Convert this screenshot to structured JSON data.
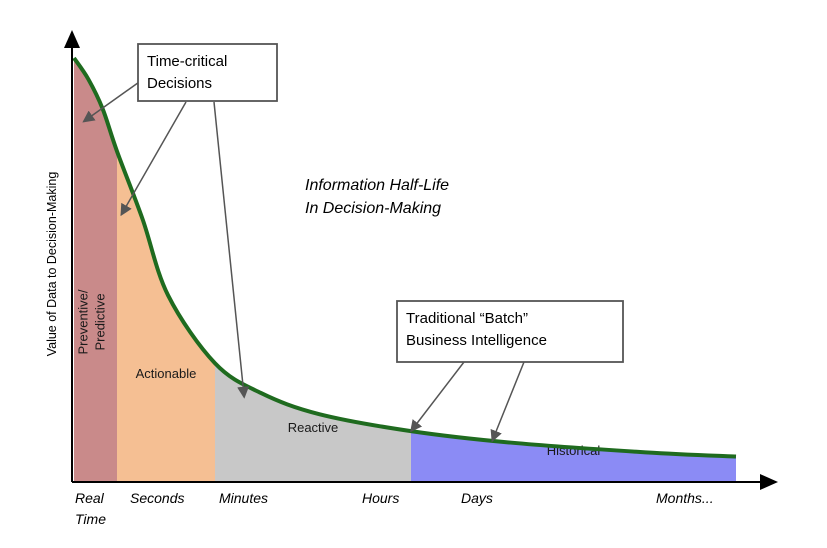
{
  "chart_data": {
    "type": "area",
    "headline": [
      "Information Half-Life",
      "In Decision-Making"
    ],
    "ylabel": "Value of Data to Decision-Making",
    "x_ticks": [
      {
        "lines": [
          "Real",
          "Time"
        ]
      },
      {
        "lines": [
          "Seconds"
        ]
      },
      {
        "lines": [
          "Minutes"
        ]
      },
      {
        "lines": [
          "Hours"
        ]
      },
      {
        "lines": [
          "Days"
        ]
      },
      {
        "lines": [
          "Months..."
        ]
      }
    ],
    "regions": [
      {
        "name": "preventive",
        "label": [
          "Preventive/",
          "Predictive"
        ],
        "vertical": true,
        "from": 0,
        "to": 0.9,
        "color": "#c98a8a"
      },
      {
        "name": "actionable",
        "label": [
          "Actionable"
        ],
        "from": 0.9,
        "to": 2.05,
        "color": "#f5bf93"
      },
      {
        "name": "reactive",
        "label": [
          "Reactive"
        ],
        "from": 2.05,
        "to": 4.4,
        "color": "#c8c8c8"
      },
      {
        "name": "historical",
        "label": [
          "Historical"
        ],
        "from": 4.4,
        "to": 8,
        "color": "#8b8bf5"
      }
    ],
    "curve": {
      "color": "#1f6b1f",
      "x": [
        0,
        0.3,
        0.6,
        0.9,
        1.2,
        1.5,
        2.05,
        2.6,
        3.3,
        4.4,
        5.5,
        7,
        8
      ],
      "y": [
        100,
        95,
        88,
        78,
        62,
        44,
        28,
        21,
        16,
        12,
        9.3,
        7,
        6
      ]
    },
    "annotations": [
      {
        "name": "time-critical",
        "text": [
          "Time-critical",
          "Decisions"
        ],
        "arrows_to": [
          [
            0.2,
            85
          ],
          [
            0.95,
            63
          ],
          [
            2.4,
            20
          ]
        ]
      },
      {
        "name": "batch-bi",
        "text": [
          "Traditional “Batch”",
          "Business Intelligence"
        ],
        "arrows_to": [
          [
            4.4,
            12
          ],
          [
            5.3,
            9.7
          ]
        ]
      }
    ],
    "ylim": [
      0,
      100
    ],
    "xlim": [
      0,
      8
    ]
  }
}
